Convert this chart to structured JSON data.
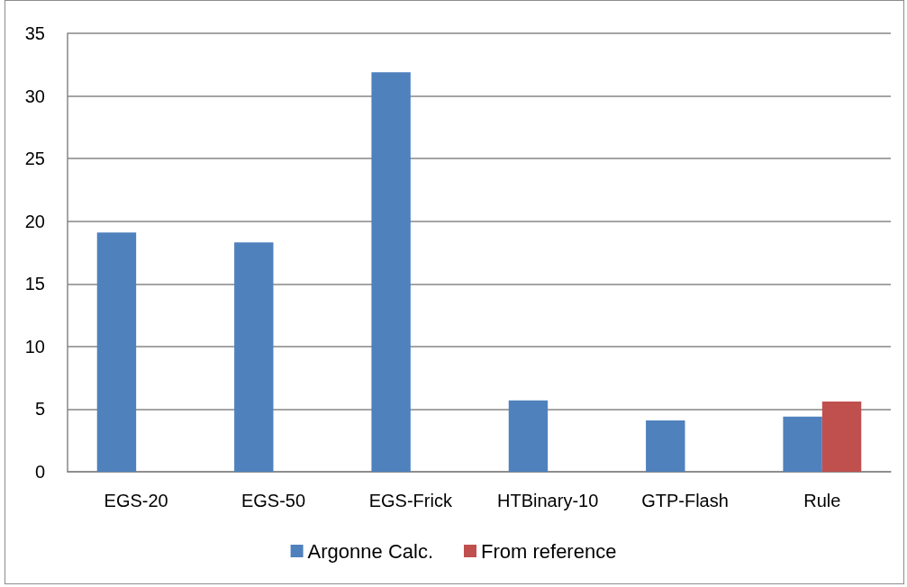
{
  "chart_data": {
    "type": "bar",
    "categories": [
      "EGS-20",
      "EGS-50",
      "EGS-Frick",
      "HTBinary-10",
      "GTP-Flash",
      "Rule"
    ],
    "series": [
      {
        "name": "Argonne Calc.",
        "color": "#4f81bd",
        "values": [
          19.1,
          18.3,
          31.9,
          5.7,
          4.1,
          4.4
        ]
      },
      {
        "name": "From reference",
        "color": "#c0504d",
        "values": [
          null,
          null,
          null,
          null,
          null,
          5.6
        ]
      }
    ],
    "ylim": [
      0,
      35
    ],
    "yticks": [
      0,
      5,
      10,
      15,
      20,
      25,
      30,
      35
    ],
    "grid": "y",
    "legend": "bottom"
  }
}
